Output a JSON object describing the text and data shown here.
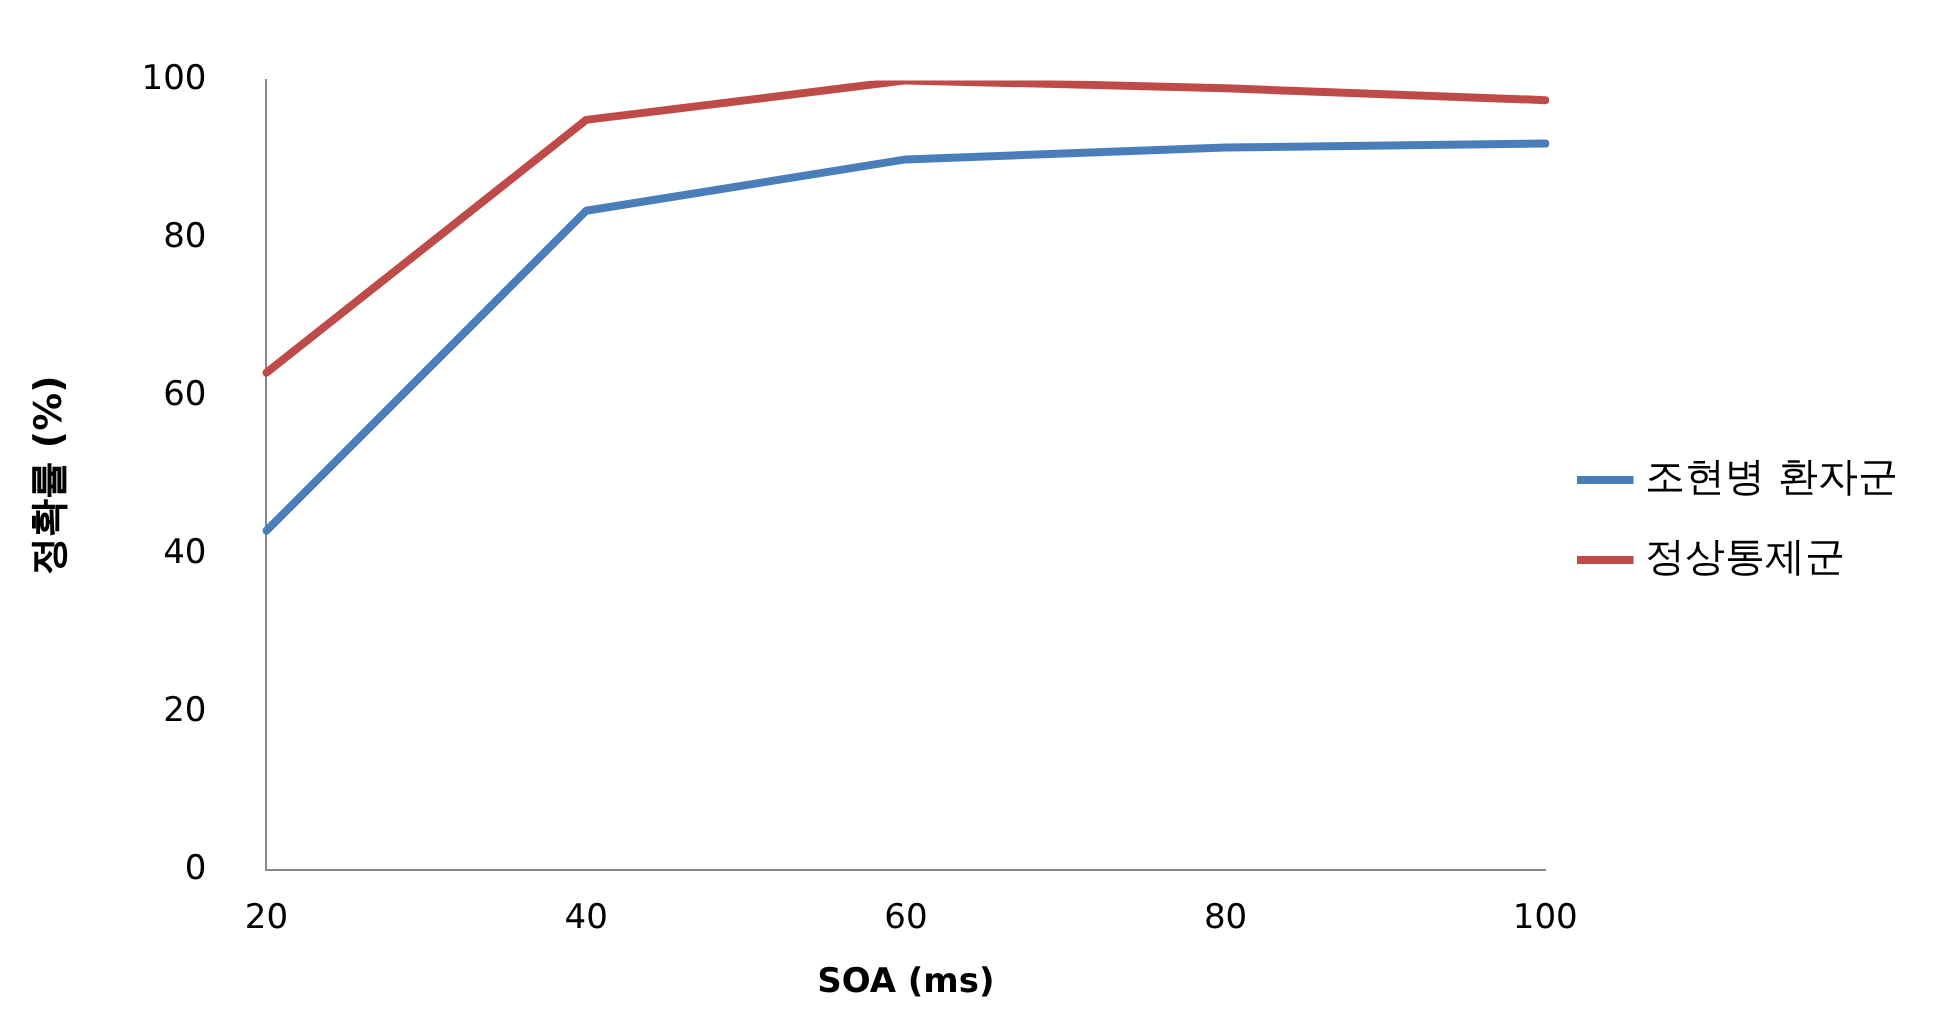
{
  "chart_data": {
    "type": "line",
    "xlabel": "SOA (ms)",
    "ylabel": "정확률 (%)",
    "categories": [
      "20",
      "40",
      "60",
      "80",
      "100"
    ],
    "series": [
      {
        "name": "조현병 환자군",
        "color": "#4a7ebb",
        "values": [
          43,
          83.5,
          90,
          91.5,
          92
        ]
      },
      {
        "name": "정상통제군",
        "color": "#be4b48",
        "values": [
          63,
          95,
          100,
          99,
          97.5
        ]
      }
    ],
    "ylim": [
      0,
      100
    ],
    "yticks": [
      0,
      20,
      40,
      60,
      80,
      100
    ],
    "grid": false,
    "legend": "right",
    "marker": "none"
  }
}
